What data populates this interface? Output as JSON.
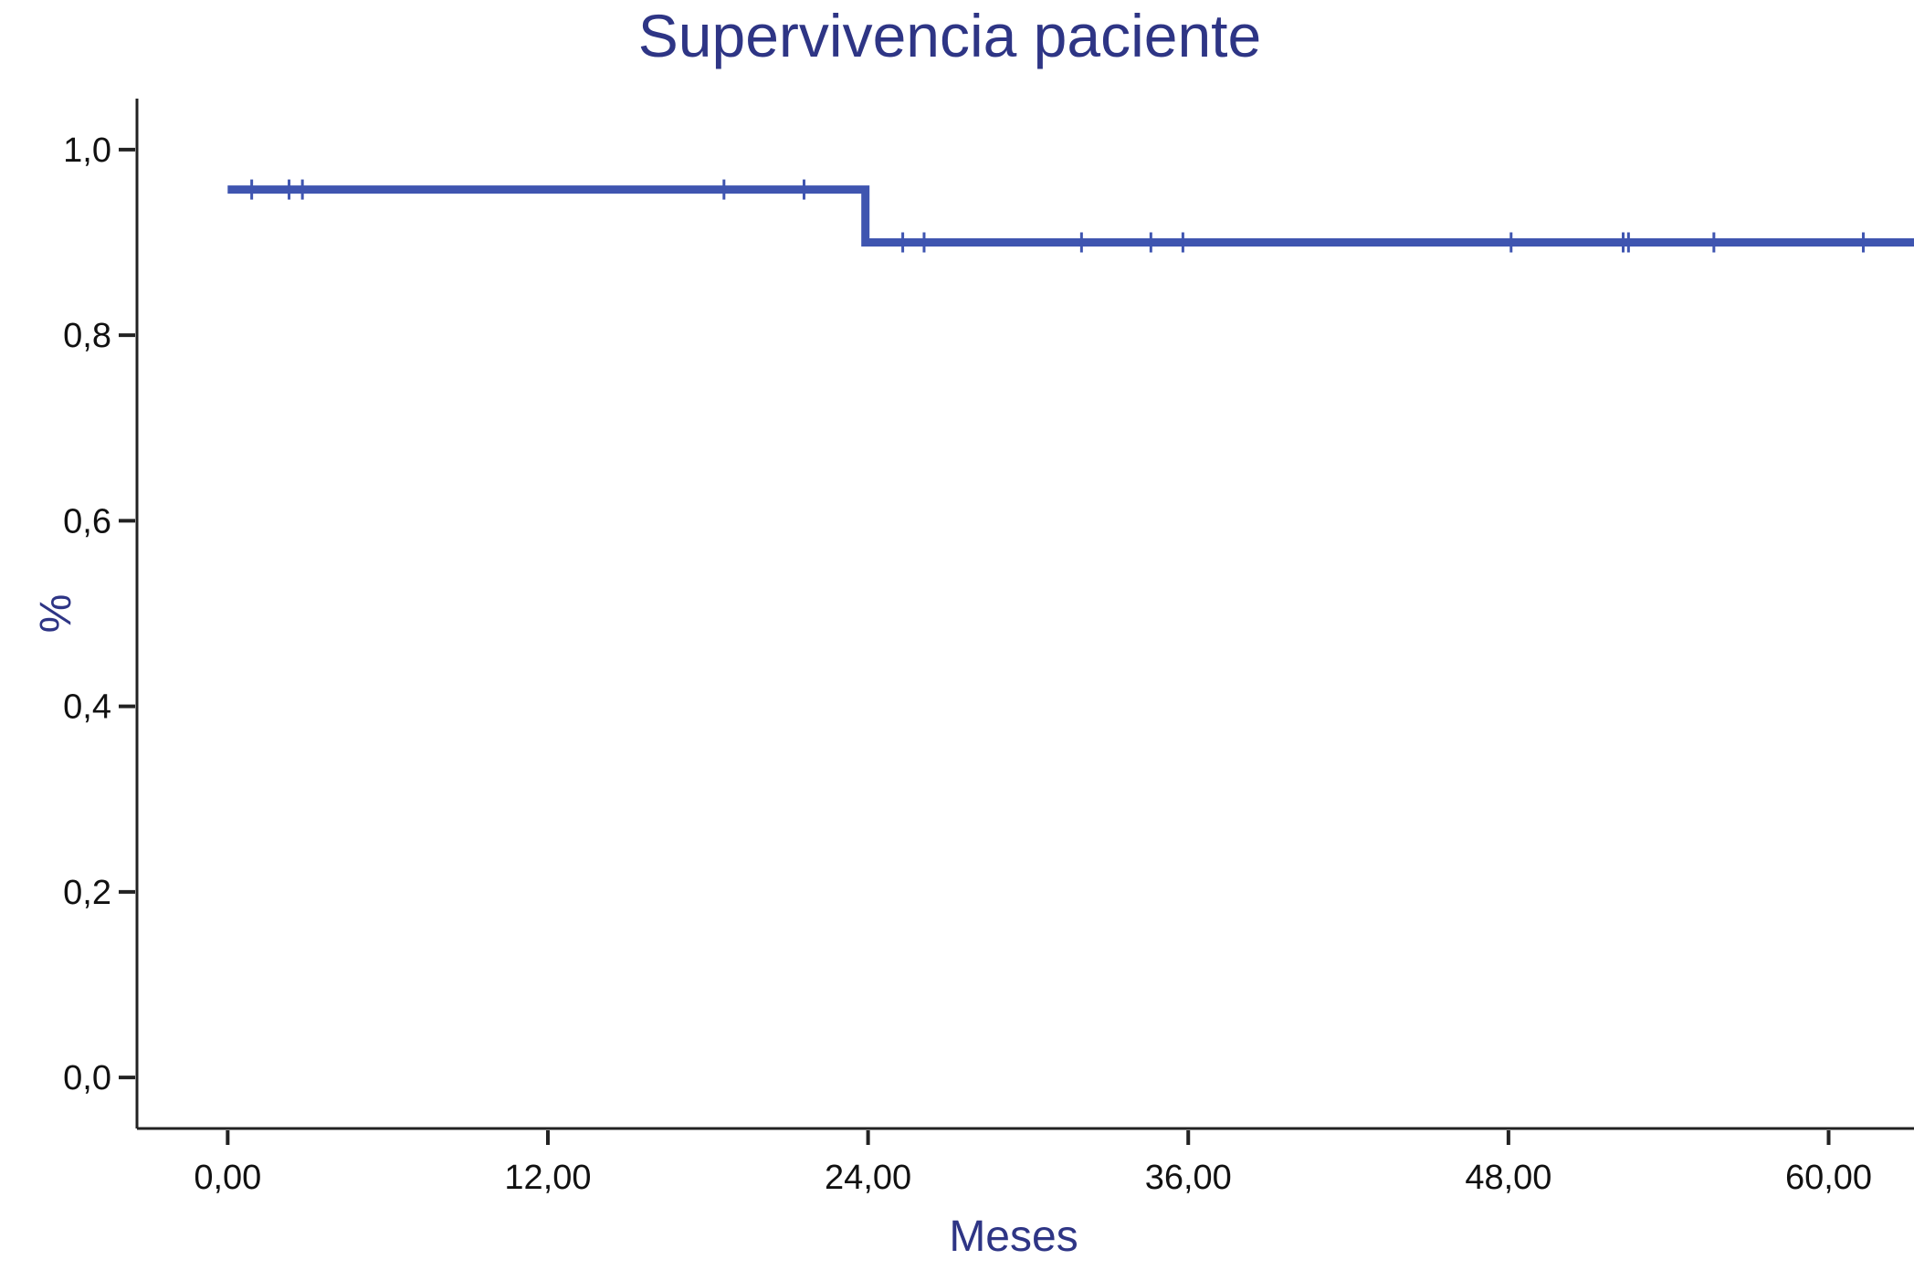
{
  "chart_data": {
    "type": "line",
    "title": "Supervivencia paciente",
    "xlabel": "Meses",
    "ylabel": "%",
    "xlim": [
      -3.4,
      63.2
    ],
    "ylim": [
      -0.055,
      1.055
    ],
    "x_ticks": [
      0,
      12,
      24,
      36,
      48,
      60
    ],
    "x_tick_labels": [
      "0,00",
      "12,00",
      "24,00",
      "36,00",
      "48,00",
      "60,00"
    ],
    "y_ticks": [
      0.0,
      0.2,
      0.4,
      0.6,
      0.8,
      1.0
    ],
    "y_tick_labels": [
      "0,0",
      "0,2",
      "0,4",
      "0,6",
      "0,8",
      "1,0"
    ],
    "grid": false,
    "legend": "none",
    "series": [
      {
        "style": "step",
        "color": "#3f55b0",
        "steps": [
          {
            "x": 0.0,
            "y": 0.957
          },
          {
            "x": 23.9,
            "y": 0.957
          },
          {
            "x": 23.9,
            "y": 0.9
          },
          {
            "x": 63.2,
            "y": 0.9
          }
        ],
        "censored": [
          {
            "x": 0.9,
            "y": 0.957
          },
          {
            "x": 2.3,
            "y": 0.957
          },
          {
            "x": 2.8,
            "y": 0.957
          },
          {
            "x": 18.6,
            "y": 0.957
          },
          {
            "x": 21.6,
            "y": 0.957
          },
          {
            "x": 25.3,
            "y": 0.9
          },
          {
            "x": 26.1,
            "y": 0.9
          },
          {
            "x": 32.0,
            "y": 0.9
          },
          {
            "x": 34.6,
            "y": 0.9
          },
          {
            "x": 35.8,
            "y": 0.9
          },
          {
            "x": 48.1,
            "y": 0.9
          },
          {
            "x": 52.3,
            "y": 0.9
          },
          {
            "x": 52.5,
            "y": 0.9
          },
          {
            "x": 55.7,
            "y": 0.9
          },
          {
            "x": 61.3,
            "y": 0.9
          }
        ]
      }
    ]
  }
}
